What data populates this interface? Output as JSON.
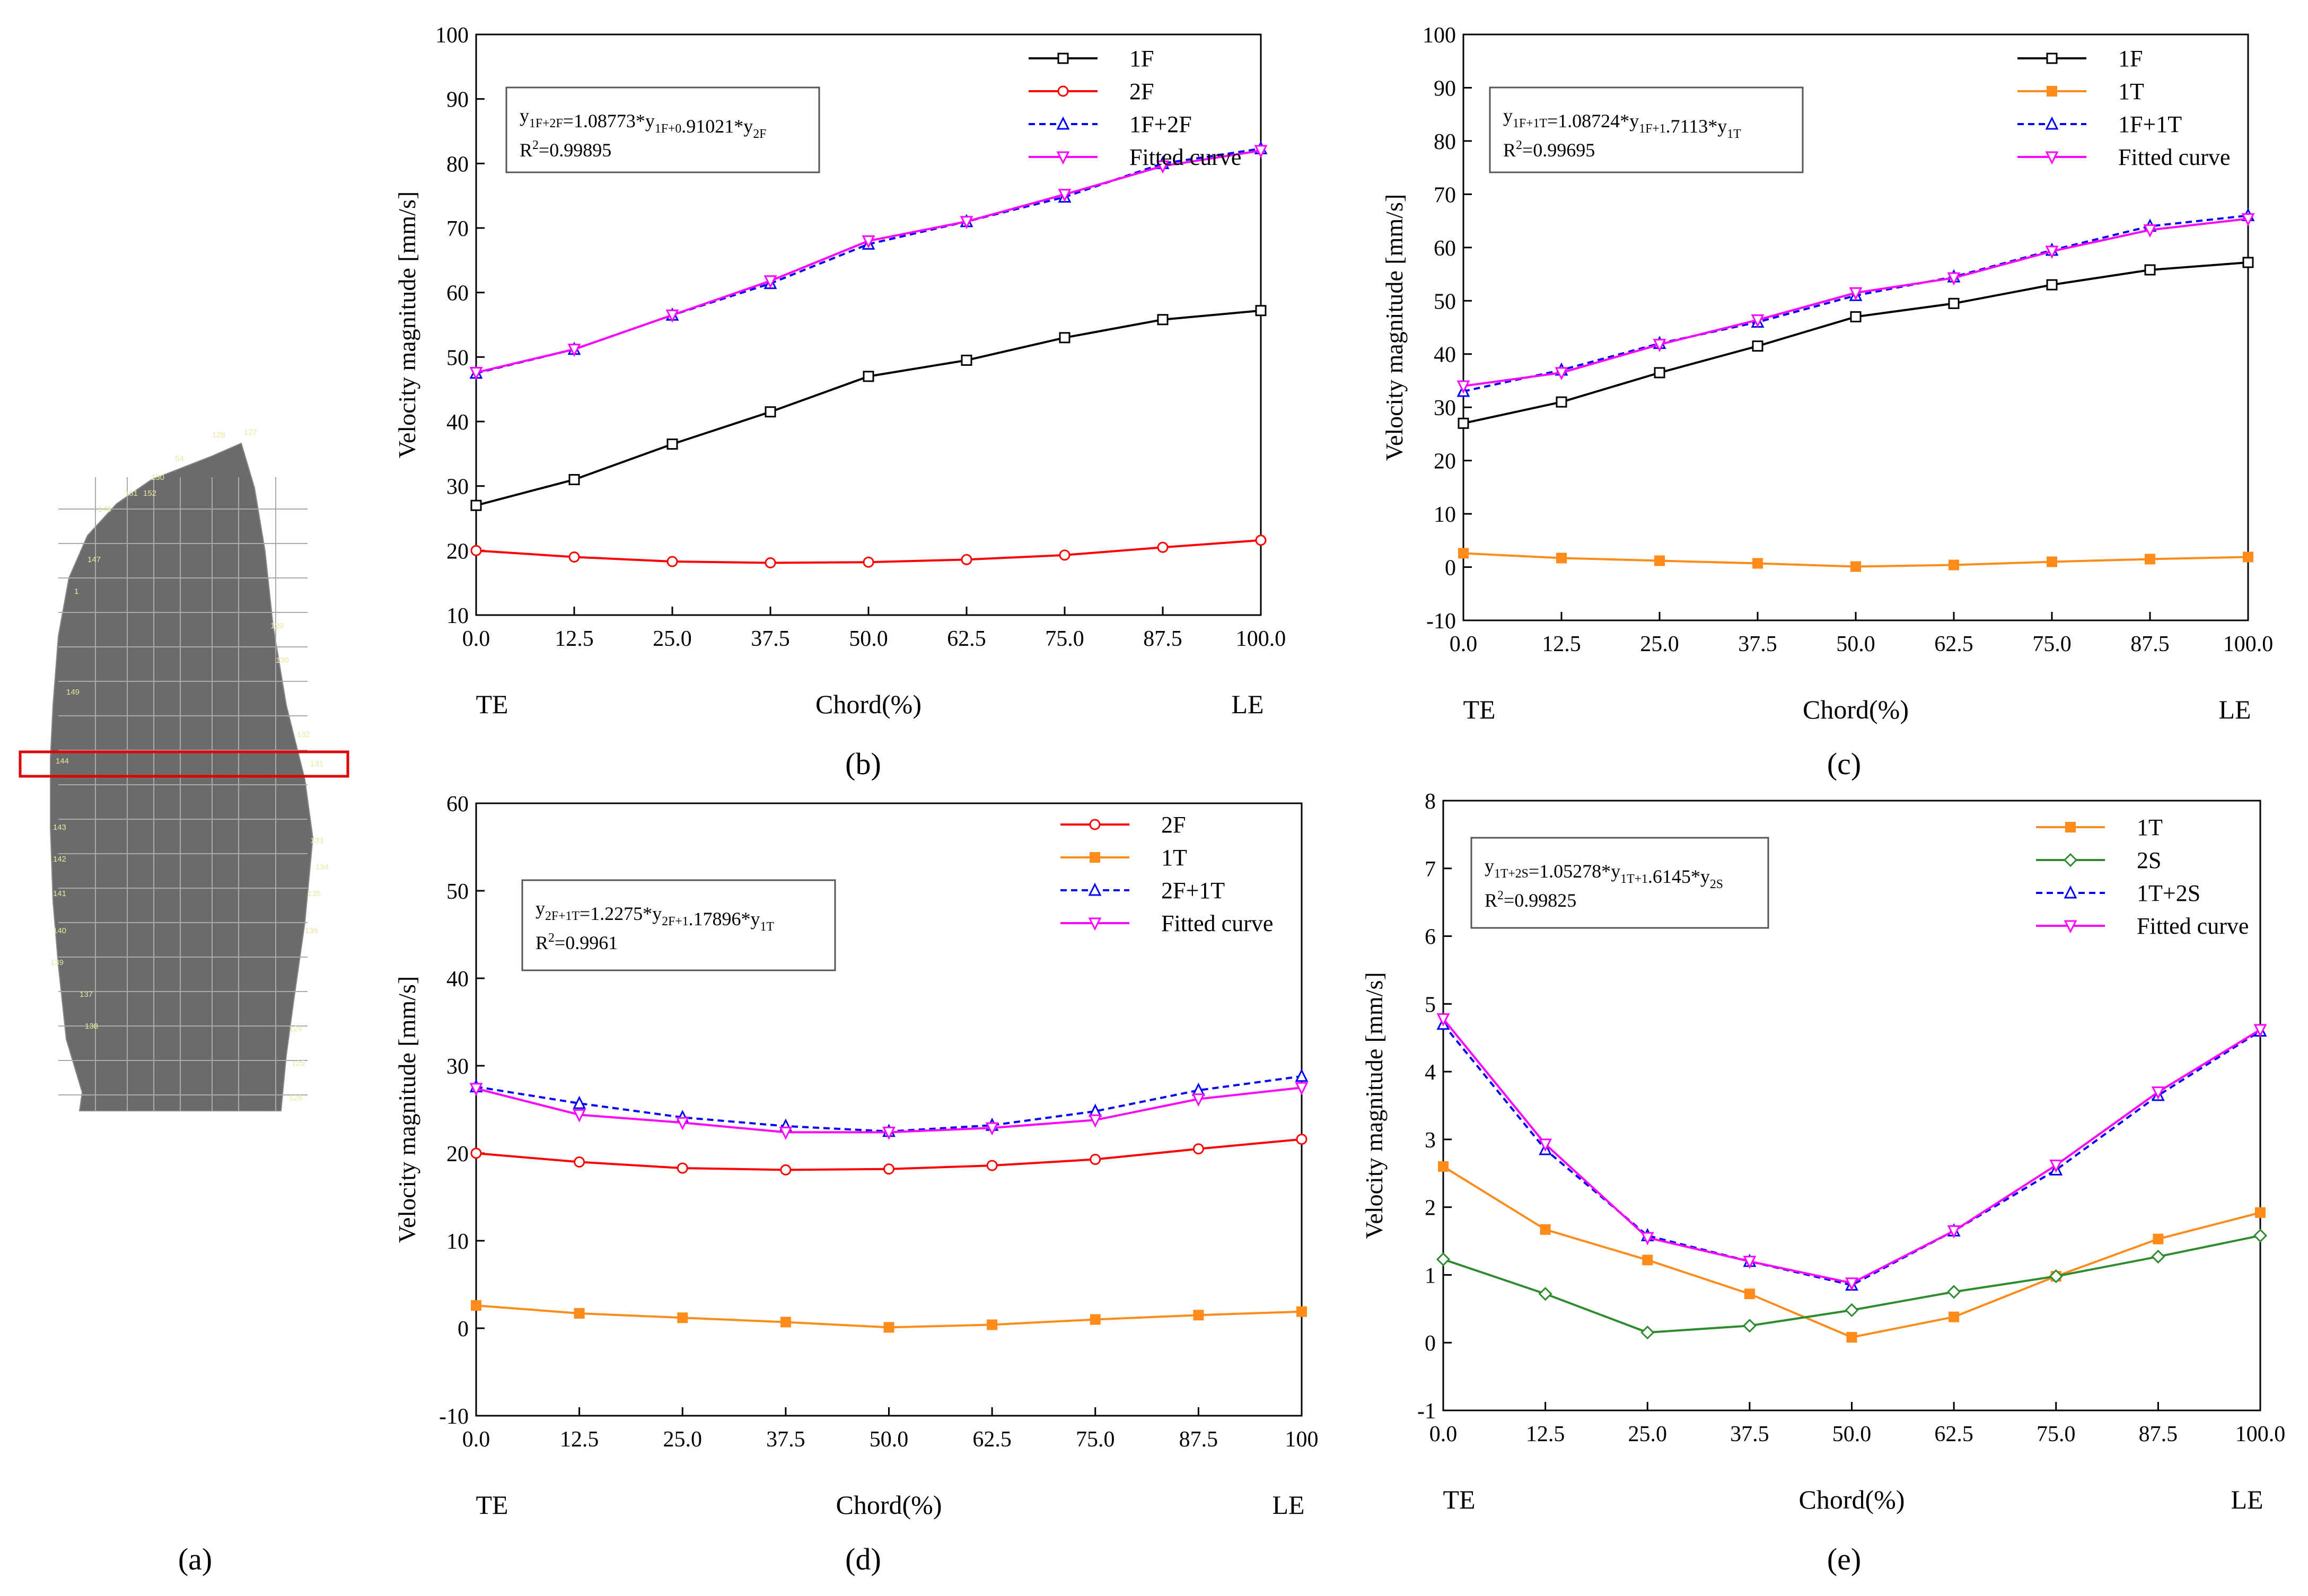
{
  "panel_labels": {
    "a": "(a)",
    "b": "(b)",
    "c": "(c)",
    "d": "(d)",
    "e": "(e)"
  },
  "mesh": {
    "name": "blade-measurement-mesh",
    "node_labels": [
      "128",
      "127",
      "54",
      "150",
      "151",
      "152",
      "148",
      "147",
      "1",
      "129",
      "130",
      "149",
      "144",
      "131",
      "132",
      "133",
      "134",
      "143",
      "142",
      "141",
      "140",
      "139",
      "135",
      "136",
      "137",
      "138",
      "124",
      "125",
      "126"
    ]
  },
  "chart_data": [
    {
      "id": "b",
      "type": "line",
      "title": "",
      "xlabel": "Chord(%)",
      "ylabel": "Velocity magnitude [mm/s]",
      "x_end_labels": [
        "TE",
        "LE"
      ],
      "x": [
        0,
        12.5,
        25,
        37.5,
        50,
        62.5,
        75,
        87.5,
        100
      ],
      "xticks": [
        "0.0",
        "12.5",
        "25.0",
        "37.5",
        "50.0",
        "62.5",
        "75.0",
        "87.5",
        "100.0"
      ],
      "ylim": [
        10,
        100
      ],
      "ystep": 10,
      "equation": "y1F+2F=1.08773*y1F+0.91021*y2F",
      "r2": "R2=0.99895",
      "series": [
        {
          "name": "1F",
          "color": "#000000",
          "marker": "square",
          "dash": "",
          "values": [
            27,
            31,
            36.5,
            41.5,
            47,
            49.5,
            53,
            55.8,
            57.2
          ]
        },
        {
          "name": "2F",
          "color": "#ff0000",
          "marker": "circle",
          "dash": "",
          "values": [
            20,
            19,
            18.3,
            18.1,
            18.2,
            18.6,
            19.3,
            20.5,
            21.6
          ]
        },
        {
          "name": "1F+2F",
          "color": "#0000ff",
          "marker": "triangle",
          "dash": "12,8",
          "values": [
            47.5,
            51.2,
            56.5,
            61.4,
            67.5,
            71,
            74.8,
            80,
            82.3
          ]
        },
        {
          "name": "Fitted curve",
          "color": "#ff00ff",
          "marker": "triangle-down",
          "dash": "",
          "values": [
            47.6,
            51.2,
            56.5,
            61.8,
            68,
            71,
            75.2,
            79.6,
            82
          ]
        }
      ]
    },
    {
      "id": "c",
      "type": "line",
      "title": "",
      "xlabel": "Chord(%)",
      "ylabel": "Velocity magnitude [mm/s]",
      "x_end_labels": [
        "TE",
        "LE"
      ],
      "x": [
        0,
        12.5,
        25,
        37.5,
        50,
        62.5,
        75,
        87.5,
        100
      ],
      "xticks": [
        "0.0",
        "12.5",
        "25.0",
        "37.5",
        "50.0",
        "62.5",
        "75.0",
        "87.5",
        "100.0"
      ],
      "ylim": [
        -10,
        100
      ],
      "ystep": 10,
      "equation": "y1F+1T=1.08724*y1F+1.7113*y1T",
      "r2": "R2=0.99695",
      "series": [
        {
          "name": "1F",
          "color": "#000000",
          "marker": "square",
          "dash": "",
          "values": [
            27,
            31,
            36.5,
            41.5,
            47,
            49.5,
            53,
            55.8,
            57.2
          ]
        },
        {
          "name": "1T",
          "color": "#ff8c1a",
          "marker": "square-filled",
          "dash": "",
          "values": [
            2.6,
            1.7,
            1.2,
            0.7,
            0.1,
            0.4,
            1.0,
            1.5,
            1.9
          ]
        },
        {
          "name": "1F+1T",
          "color": "#0000ff",
          "marker": "triangle",
          "dash": "12,8",
          "values": [
            33,
            37,
            42,
            46,
            51,
            54.5,
            59.5,
            64,
            66
          ]
        },
        {
          "name": "Fitted curve",
          "color": "#ff00ff",
          "marker": "triangle-down",
          "dash": "",
          "values": [
            34,
            36.5,
            41.8,
            46.4,
            51.5,
            54.3,
            59.3,
            63.3,
            65.4
          ]
        }
      ]
    },
    {
      "id": "d",
      "type": "line",
      "title": "",
      "xlabel": "Chord(%)",
      "ylabel": "Velocity magnitude [mm/s]",
      "x_end_labels": [
        "TE",
        "LE"
      ],
      "x": [
        0,
        12.5,
        25,
        37.5,
        50,
        62.5,
        75,
        87.5,
        100
      ],
      "xticks": [
        "0.0",
        "12.5",
        "25.0",
        "37.5",
        "50.0",
        "62.5",
        "75.0",
        "87.5",
        "100"
      ],
      "ylim": [
        -10,
        60
      ],
      "ystep": 10,
      "equation": "y2F+1T=1.2275*y2F+1.17896*y1T",
      "r2": "R2=0.9961",
      "series": [
        {
          "name": "2F",
          "color": "#ff0000",
          "marker": "circle",
          "dash": "",
          "values": [
            20,
            19,
            18.3,
            18.1,
            18.2,
            18.6,
            19.3,
            20.5,
            21.6
          ]
        },
        {
          "name": "1T",
          "color": "#ff8c1a",
          "marker": "square-filled",
          "dash": "",
          "values": [
            2.6,
            1.7,
            1.2,
            0.7,
            0.1,
            0.4,
            1.0,
            1.5,
            1.9
          ]
        },
        {
          "name": "2F+1T",
          "color": "#0000ff",
          "marker": "triangle",
          "dash": "12,8",
          "values": [
            27.6,
            25.7,
            24.1,
            23.1,
            22.5,
            23.2,
            24.8,
            27.2,
            28.8
          ]
        },
        {
          "name": "Fitted curve",
          "color": "#ff00ff",
          "marker": "triangle-down",
          "dash": "",
          "values": [
            27.4,
            24.4,
            23.5,
            22.4,
            22.4,
            22.9,
            23.8,
            26.2,
            27.5
          ]
        }
      ]
    },
    {
      "id": "e",
      "type": "line",
      "title": "",
      "xlabel": "Chord(%)",
      "ylabel": "Velocity magnitude [mm/s]",
      "x_end_labels": [
        "TE",
        "LE"
      ],
      "x": [
        0,
        12.5,
        25,
        37.5,
        50,
        62.5,
        75,
        87.5,
        100
      ],
      "xticks": [
        "0.0",
        "12.5",
        "25.0",
        "37.5",
        "50.0",
        "62.5",
        "75.0",
        "87.5",
        "100.0"
      ],
      "ylim": [
        -1,
        8
      ],
      "ystep": 1,
      "equation": "y1T+2S=1.05278*y1T+1.6145*y2S",
      "r2": "R2=0.99825",
      "series": [
        {
          "name": "1T",
          "color": "#ff8c1a",
          "marker": "square-filled",
          "dash": "",
          "values": [
            2.6,
            1.67,
            1.22,
            0.72,
            0.08,
            0.38,
            0.98,
            1.53,
            1.92
          ]
        },
        {
          "name": "2S",
          "color": "#2e8b2e",
          "marker": "diamond",
          "dash": "",
          "values": [
            1.23,
            0.72,
            0.15,
            0.25,
            0.48,
            0.75,
            0.98,
            1.27,
            1.58
          ]
        },
        {
          "name": "1T+2S",
          "color": "#0000ff",
          "marker": "triangle",
          "dash": "12,8",
          "values": [
            4.7,
            2.85,
            1.58,
            1.2,
            0.85,
            1.65,
            2.55,
            3.65,
            4.6
          ]
        },
        {
          "name": "Fitted curve",
          "color": "#ff00ff",
          "marker": "triangle-down",
          "dash": "",
          "values": [
            4.78,
            2.93,
            1.55,
            1.2,
            0.88,
            1.65,
            2.62,
            3.7,
            4.62
          ]
        }
      ]
    }
  ]
}
